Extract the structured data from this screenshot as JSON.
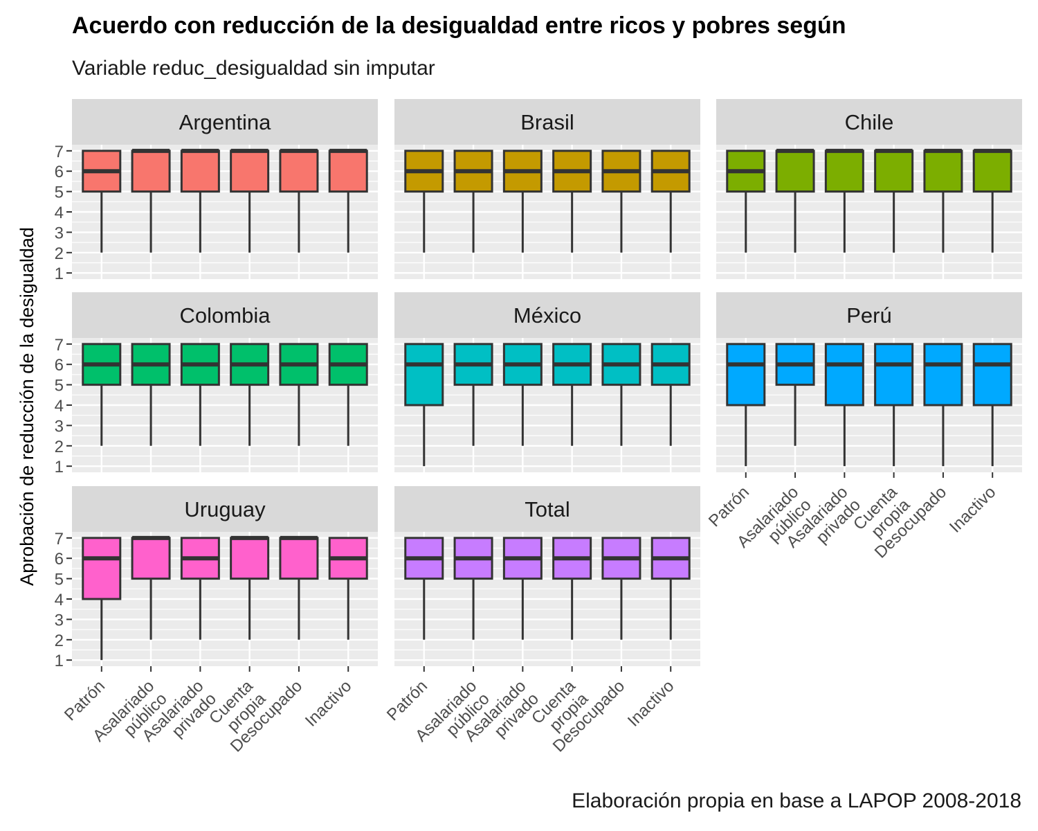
{
  "chart_data": {
    "type": "boxplot",
    "title": "Acuerdo con reducción de la desigualdad entre ricos y pobres según",
    "subtitle": "Variable reduc_desigualdad sin imputar",
    "caption": "Elaboración propia en base a LAPOP 2008-2018",
    "ylabel": "Aprobación de reducción de la desigualdad",
    "xlabel": "",
    "ylim": [
      1,
      7
    ],
    "y_ticks": [
      1,
      2,
      3,
      4,
      5,
      6,
      7
    ],
    "grid": true,
    "categories": [
      "Patrón",
      "Asalariado público",
      "Asalariado privado",
      "Cuenta propia",
      "Desocupado",
      "Inactivo"
    ],
    "category_tick_lines": [
      [
        "Patrón"
      ],
      [
        "Asalariado",
        "público"
      ],
      [
        "Asalariado",
        "privado"
      ],
      [
        "Cuenta",
        "propia"
      ],
      [
        "Desocupado"
      ],
      [
        "Inactivo"
      ]
    ],
    "panels": [
      {
        "name": "Argentina",
        "color": "#F8766D",
        "boxes": [
          {
            "min": 2,
            "q1": 5,
            "median": 6,
            "q3": 7,
            "max": 7
          },
          {
            "min": 2,
            "q1": 5,
            "median": 7,
            "q3": 7,
            "max": 7
          },
          {
            "min": 2,
            "q1": 5,
            "median": 7,
            "q3": 7,
            "max": 7
          },
          {
            "min": 2,
            "q1": 5,
            "median": 7,
            "q3": 7,
            "max": 7
          },
          {
            "min": 2,
            "q1": 5,
            "median": 7,
            "q3": 7,
            "max": 7
          },
          {
            "min": 2,
            "q1": 5,
            "median": 7,
            "q3": 7,
            "max": 7
          }
        ]
      },
      {
        "name": "Brasil",
        "color": "#C49A00",
        "boxes": [
          {
            "min": 2,
            "q1": 5,
            "median": 6,
            "q3": 7,
            "max": 7
          },
          {
            "min": 2,
            "q1": 5,
            "median": 6,
            "q3": 7,
            "max": 7
          },
          {
            "min": 2,
            "q1": 5,
            "median": 6,
            "q3": 7,
            "max": 7
          },
          {
            "min": 2,
            "q1": 5,
            "median": 6,
            "q3": 7,
            "max": 7
          },
          {
            "min": 2,
            "q1": 5,
            "median": 6,
            "q3": 7,
            "max": 7
          },
          {
            "min": 2,
            "q1": 5,
            "median": 6,
            "q3": 7,
            "max": 7
          }
        ]
      },
      {
        "name": "Chile",
        "color": "#7CAE00",
        "boxes": [
          {
            "min": 2,
            "q1": 5,
            "median": 6,
            "q3": 7,
            "max": 7
          },
          {
            "min": 2,
            "q1": 5,
            "median": 7,
            "q3": 7,
            "max": 7
          },
          {
            "min": 2,
            "q1": 5,
            "median": 7,
            "q3": 7,
            "max": 7
          },
          {
            "min": 2,
            "q1": 5,
            "median": 7,
            "q3": 7,
            "max": 7
          },
          {
            "min": 2,
            "q1": 5,
            "median": 7,
            "q3": 7,
            "max": 7
          },
          {
            "min": 2,
            "q1": 5,
            "median": 7,
            "q3": 7,
            "max": 7
          }
        ]
      },
      {
        "name": "Colombia",
        "color": "#00C06B",
        "boxes": [
          {
            "min": 2,
            "q1": 5,
            "median": 6,
            "q3": 7,
            "max": 7
          },
          {
            "min": 2,
            "q1": 5,
            "median": 6,
            "q3": 7,
            "max": 7
          },
          {
            "min": 2,
            "q1": 5,
            "median": 6,
            "q3": 7,
            "max": 7
          },
          {
            "min": 2,
            "q1": 5,
            "median": 6,
            "q3": 7,
            "max": 7
          },
          {
            "min": 2,
            "q1": 5,
            "median": 6,
            "q3": 7,
            "max": 7
          },
          {
            "min": 2,
            "q1": 5,
            "median": 6,
            "q3": 7,
            "max": 7
          }
        ]
      },
      {
        "name": "México",
        "color": "#00BFC4",
        "boxes": [
          {
            "min": 1,
            "q1": 4,
            "median": 6,
            "q3": 7,
            "max": 7
          },
          {
            "min": 2,
            "q1": 5,
            "median": 6,
            "q3": 7,
            "max": 7
          },
          {
            "min": 2,
            "q1": 5,
            "median": 6,
            "q3": 7,
            "max": 7
          },
          {
            "min": 2,
            "q1": 5,
            "median": 6,
            "q3": 7,
            "max": 7
          },
          {
            "min": 2,
            "q1": 5,
            "median": 6,
            "q3": 7,
            "max": 7
          },
          {
            "min": 2,
            "q1": 5,
            "median": 6,
            "q3": 7,
            "max": 7
          }
        ]
      },
      {
        "name": "Perú",
        "color": "#00A9FF",
        "boxes": [
          {
            "min": 1,
            "q1": 4,
            "median": 6,
            "q3": 7,
            "max": 7
          },
          {
            "min": 2,
            "q1": 5,
            "median": 6,
            "q3": 7,
            "max": 7
          },
          {
            "min": 1,
            "q1": 4,
            "median": 6,
            "q3": 7,
            "max": 7
          },
          {
            "min": 1,
            "q1": 4,
            "median": 6,
            "q3": 7,
            "max": 7
          },
          {
            "min": 1,
            "q1": 4,
            "median": 6,
            "q3": 7,
            "max": 7
          },
          {
            "min": 1,
            "q1": 4,
            "median": 6,
            "q3": 7,
            "max": 7
          }
        ]
      },
      {
        "name": "Uruguay",
        "color": "#FF61CC",
        "boxes": [
          {
            "min": 1,
            "q1": 4,
            "median": 6,
            "q3": 7,
            "max": 7
          },
          {
            "min": 2,
            "q1": 5,
            "median": 7,
            "q3": 7,
            "max": 7
          },
          {
            "min": 2,
            "q1": 5,
            "median": 6,
            "q3": 7,
            "max": 7
          },
          {
            "min": 2,
            "q1": 5,
            "median": 7,
            "q3": 7,
            "max": 7
          },
          {
            "min": 2,
            "q1": 5,
            "median": 7,
            "q3": 7,
            "max": 7
          },
          {
            "min": 2,
            "q1": 5,
            "median": 6,
            "q3": 7,
            "max": 7
          }
        ]
      },
      {
        "name": "Total",
        "color": "#C77CFF",
        "boxes": [
          {
            "min": 2,
            "q1": 5,
            "median": 6,
            "q3": 7,
            "max": 7
          },
          {
            "min": 2,
            "q1": 5,
            "median": 6,
            "q3": 7,
            "max": 7
          },
          {
            "min": 2,
            "q1": 5,
            "median": 6,
            "q3": 7,
            "max": 7
          },
          {
            "min": 2,
            "q1": 5,
            "median": 6,
            "q3": 7,
            "max": 7
          },
          {
            "min": 2,
            "q1": 5,
            "median": 6,
            "q3": 7,
            "max": 7
          },
          {
            "min": 2,
            "q1": 5,
            "median": 6,
            "q3": 7,
            "max": 7
          }
        ]
      }
    ]
  },
  "colors": {
    "panel_background": "#EBEBEB",
    "strip_background": "#D9D9D9",
    "gridline": "#FFFFFF",
    "box_outline": "#333333"
  }
}
